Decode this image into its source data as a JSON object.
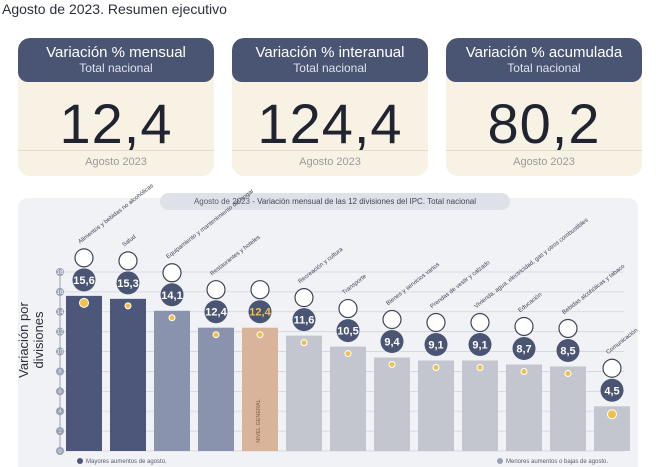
{
  "header": {
    "subtitle": "Agosto de 2023. Resumen ejecutivo"
  },
  "cards": [
    {
      "title": "Variación % mensual",
      "sub": "Total nacional",
      "value": "12,4",
      "date": "Agosto 2023"
    },
    {
      "title": "Variación % interanual",
      "sub": "Total nacional",
      "value": "124,4",
      "date": "Agosto 2023"
    },
    {
      "title": "Variación % acumulada",
      "sub": "Total nacional",
      "value": "80,2",
      "date": "Agosto 2023"
    }
  ],
  "chart_data": {
    "type": "bar",
    "title_part1": "Agosto de 2023 - ",
    "title_part2": "Variación mensual de las 12 divisiones del IPC. Total nacional",
    "ylabel": "Variación por divisiones",
    "ylim": [
      0,
      18
    ],
    "yticks": [
      0,
      2,
      4,
      6,
      8,
      10,
      12,
      14,
      16,
      18
    ],
    "grid": true,
    "categories": [
      "Alimentos y bebidas no alcohólicas",
      "Salud",
      "Equipamiento y mantenimiento del hogar",
      "Restaurantes y hoteles",
      "NIVEL GENERAL",
      "Recreación y cultura",
      "Transporte",
      "Bienes y servicios varios",
      "Prendas de vestir y calzado",
      "Vivienda, agua, electricidad, gas y otros combustibles",
      "Educación",
      "Bebidas alcohólicas y tabaco",
      "Comunicación"
    ],
    "values": [
      15.6,
      15.3,
      14.1,
      12.4,
      12.4,
      11.6,
      10.5,
      9.4,
      9.1,
      9.1,
      8.7,
      8.5,
      4.5
    ],
    "value_labels": [
      "15,6",
      "15,3",
      "14,1",
      "12,4",
      "12,4",
      "11,6",
      "10,5",
      "9,4",
      "9,1",
      "9,1",
      "8,7",
      "8,5",
      "4,5"
    ],
    "bar_group": [
      "high",
      "high",
      "high",
      "high",
      "general",
      "low",
      "low",
      "low",
      "low",
      "low",
      "low",
      "low",
      "low"
    ],
    "bar_label_general": "NIVEL GENERAL",
    "legend": [
      {
        "label": "Mayores aumentos de agosto.",
        "position": "bottom-left"
      },
      {
        "label": "Menores aumentos o bajas de agosto.",
        "position": "bottom-right"
      }
    ],
    "colors": {
      "high_top": "#4d5779",
      "high_mid": "#8a93ad",
      "general": "#d9b49a",
      "low": "#c4c6cf",
      "marker": "#f0c04a",
      "bubble": "#4a5473",
      "accent_label": "#f0c04a"
    },
    "icons": [
      "chicken-icon",
      "medical-cross-icon",
      "house-icon",
      "dinner-icon",
      "basket-icon",
      "sun-landscape-icon",
      "car-icon",
      "scissors-icon",
      "shirt-icon",
      "lightbulb-icon",
      "books-icon",
      "bottle-icon",
      "phone-icon"
    ]
  }
}
